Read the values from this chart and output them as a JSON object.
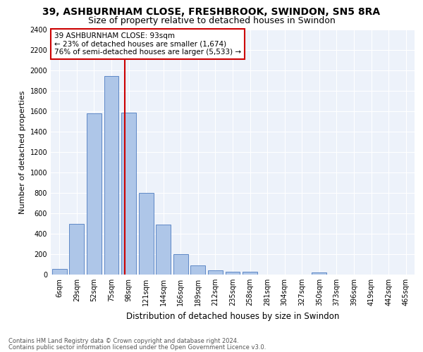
{
  "title": "39, ASHBURNHAM CLOSE, FRESHBROOK, SWINDON, SN5 8RA",
  "subtitle": "Size of property relative to detached houses in Swindon",
  "xlabel": "Distribution of detached houses by size in Swindon",
  "ylabel": "Number of detached properties",
  "categories": [
    "6sqm",
    "29sqm",
    "52sqm",
    "75sqm",
    "98sqm",
    "121sqm",
    "144sqm",
    "166sqm",
    "189sqm",
    "212sqm",
    "235sqm",
    "258sqm",
    "281sqm",
    "304sqm",
    "327sqm",
    "350sqm",
    "373sqm",
    "396sqm",
    "419sqm",
    "442sqm",
    "465sqm"
  ],
  "values": [
    55,
    500,
    1580,
    1950,
    1590,
    800,
    490,
    200,
    90,
    40,
    30,
    25,
    0,
    0,
    0,
    20,
    0,
    0,
    0,
    0,
    0
  ],
  "bar_color": "#aec6e8",
  "bar_edge_color": "#4c7bbf",
  "ylim": [
    0,
    2400
  ],
  "yticks": [
    0,
    200,
    400,
    600,
    800,
    1000,
    1200,
    1400,
    1600,
    1800,
    2000,
    2200,
    2400
  ],
  "property_line_label": "39 ASHBURNHAM CLOSE: 93sqm",
  "annotation_line2": "← 23% of detached houses are smaller (1,674)",
  "annotation_line3": "76% of semi-detached houses are larger (5,533) →",
  "annotation_box_color": "#ffffff",
  "annotation_box_edge": "#cc0000",
  "vline_color": "#cc0000",
  "footer1": "Contains HM Land Registry data © Crown copyright and database right 2024.",
  "footer2": "Contains public sector information licensed under the Open Government Licence v3.0.",
  "bg_color": "#edf2fa",
  "title_fontsize": 10,
  "subtitle_fontsize": 9,
  "ylabel_fontsize": 8,
  "xlabel_fontsize": 8.5,
  "tick_fontsize": 7,
  "annot_fontsize": 7.5,
  "footer_fontsize": 6,
  "vline_x_index": 3.78
}
